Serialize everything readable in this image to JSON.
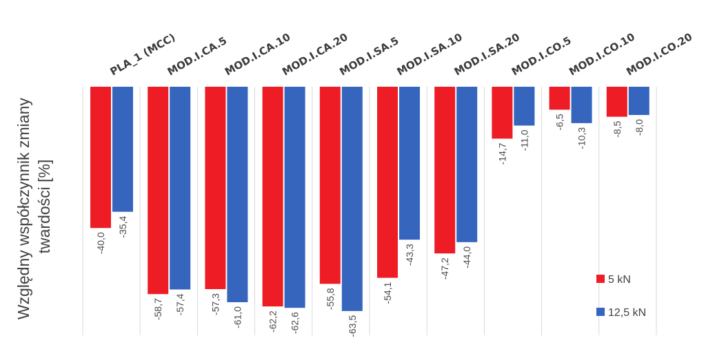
{
  "chart_data": {
    "type": "bar",
    "ylabel_lines": [
      "Względny współczynnik zmiany",
      "twardości [%]"
    ],
    "categories": [
      "PLA_1 (MCC)",
      "MOD.I.CA.5",
      "MOD.I.CA.10",
      "MOD.I.CA.20",
      "MOD.I.SA.5",
      "MOD.I.SA.10",
      "MOD.I.SA.20",
      "MOD.I.CO.5",
      "MOD.I.CO.10",
      "MOD.I.CO.20"
    ],
    "series": [
      {
        "name": "5 kN",
        "color": "#ee1c25",
        "values": [
          -40.0,
          -58.7,
          -57.3,
          -62.2,
          -55.8,
          -54.1,
          -47.2,
          -14.7,
          -6.5,
          -8.5
        ],
        "labels": [
          "-40,0",
          "-58,7",
          "-57,3",
          "-62,2",
          "-55,8",
          "-54,1",
          "-47,2",
          "-14,7",
          "-6,5",
          "-8,5"
        ]
      },
      {
        "name": "12,5 kN",
        "color": "#3565bd",
        "values": [
          -35.4,
          -57.4,
          -61.0,
          -62.6,
          -63.5,
          -43.3,
          -44.0,
          -11.0,
          -10.3,
          -8.0
        ],
        "labels": [
          "-35,4",
          "-57,4",
          "-61,0",
          "-62,6",
          "-63,5",
          "-43,3",
          "-44,0",
          "-11,0",
          "-10,3",
          "-8,0"
        ]
      }
    ],
    "ylim": [
      -70,
      0
    ],
    "grid": true,
    "legend_position": "bottom-right"
  }
}
